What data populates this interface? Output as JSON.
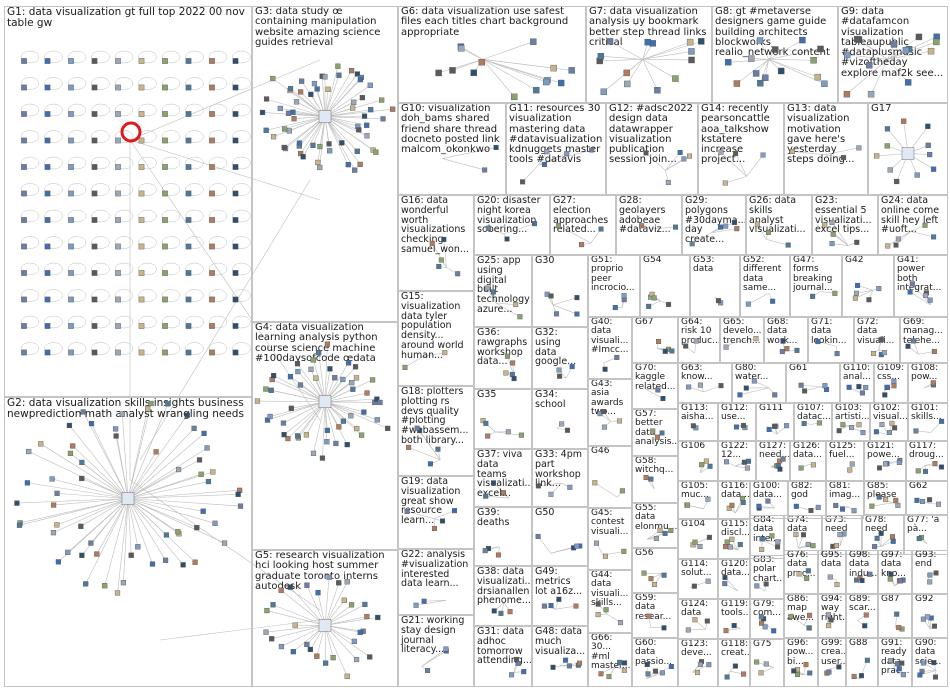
{
  "colors": {
    "border": "#c4c4c4",
    "edge": "#bdbdbd",
    "text": "#1a1a1a",
    "highlight": "#e0191b"
  },
  "groups": [
    {
      "id": "G1",
      "label": "G1: data visualization gt full top 2022 00 nov table gw"
    },
    {
      "id": "G2",
      "label": "G2: data visualization skills insights business newprediction math analyst wrangling needs"
    },
    {
      "id": "G3",
      "label": "G3: data study œ containing manipulation website amazing science guides retrieval"
    },
    {
      "id": "G4",
      "label": "G4: data visualization learning analysis python course science machine #100daysofcode œdata"
    },
    {
      "id": "G5",
      "label": "G5: research visualization hci looking host summer graduate toronto interns autodesk"
    },
    {
      "id": "G6",
      "label": "G6: data visualization use safest files each titles chart background appropriate"
    },
    {
      "id": "G7",
      "label": "G7: data visualization analysis џу bookmark better step thread links critical"
    },
    {
      "id": "G8",
      "label": "G8: gt #metaverse designers game guide building architects blockworks_ realio_network content"
    },
    {
      "id": "G9",
      "label": "G9: data #datafamcon visualization tableaupublic #dataplusmusic #vizoftheday explore maf2k see..."
    },
    {
      "id": "G10",
      "label": "G10: visualization doh_bams shared friend share thread docneto posted link malcom_okonkwo"
    },
    {
      "id": "G11",
      "label": "G11: resources 30 visualization mastering data #datavisualization kdnuggets master tools #datavis"
    },
    {
      "id": "G12",
      "label": "G12: #adsc2022 design data datawrapper visualization publication session join..."
    },
    {
      "id": "G14",
      "label": "G14: recently pearsoncattle aoa_talkshow kstatere increase project..."
    },
    {
      "id": "G13",
      "label": "G13: data visualization motivation gave here's yesterday steps doing..."
    },
    {
      "id": "G17",
      "label": "G17"
    },
    {
      "id": "G15",
      "label": "G15: visualization data tyler population density... around world human..."
    },
    {
      "id": "G16",
      "label": "G16: data wonderful worth visualizations checking samuel_won..."
    },
    {
      "id": "G18",
      "label": "G18: plotters plotting rs devs quality #plotting #webassem... both library..."
    },
    {
      "id": "G19",
      "label": "G19: data visualization great show resource learn..."
    },
    {
      "id": "G20",
      "label": "G20: disaster night korea visualization sobering..."
    },
    {
      "id": "G21",
      "label": "G21: working stay design journal literacy..."
    },
    {
      "id": "G22",
      "label": "G22: analysis #visualization interested data learn..."
    },
    {
      "id": "G23",
      "label": "G23: essential 5 visualizati... excel tips..."
    },
    {
      "id": "G24",
      "label": "G24: data online come skill hey left #uoft..."
    },
    {
      "id": "G25",
      "label": "G25: app using digital built technology azure..."
    },
    {
      "id": "G26",
      "label": "G26: data skills analyst visualizati..."
    },
    {
      "id": "G27",
      "label": "G27: election approaches related..."
    },
    {
      "id": "G28",
      "label": "G28: geolayers adobeae #dataviz..."
    },
    {
      "id": "G29",
      "label": "G29: polygons #30dayma... day create..."
    },
    {
      "id": "G30",
      "label": "G30"
    },
    {
      "id": "G31",
      "label": "G31: data adhoc tomorrow attending..."
    },
    {
      "id": "G32",
      "label": "G32: using data google..."
    },
    {
      "id": "G33",
      "label": "G33: 4pm part workshop link..."
    },
    {
      "id": "G34",
      "label": "G34: school"
    },
    {
      "id": "G35",
      "label": "G35"
    },
    {
      "id": "G36",
      "label": "G36: rawgraphs workshop data..."
    },
    {
      "id": "G37",
      "label": "G37: viva data teams visualizati... excel..."
    },
    {
      "id": "G38",
      "label": "G38: data visualizati... drsianallen phenome..."
    },
    {
      "id": "G39",
      "label": "G39: deaths"
    },
    {
      "id": "G40",
      "label": "G40: data visuali... #Imcc..."
    },
    {
      "id": "G41",
      "label": "G41: power both integrat..."
    },
    {
      "id": "G42",
      "label": "G42"
    },
    {
      "id": "G43",
      "label": "G43: asia awards two..."
    },
    {
      "id": "G44",
      "label": "G44: data visuali... skills..."
    },
    {
      "id": "G45",
      "label": "G45: contest visuali..."
    },
    {
      "id": "G46",
      "label": "G46"
    },
    {
      "id": "G47",
      "label": "G47: forms breaking journal..."
    },
    {
      "id": "G48",
      "label": "G48: data much visualiza..."
    },
    {
      "id": "G49",
      "label": "G49: metrics lot a16z..."
    },
    {
      "id": "G50",
      "label": "G50"
    },
    {
      "id": "G51",
      "label": "G51: proprio peer incrocio..."
    },
    {
      "id": "G52",
      "label": "G52: different data same..."
    },
    {
      "id": "G53",
      "label": "G53: data"
    },
    {
      "id": "G54",
      "label": "G54"
    },
    {
      "id": "G55",
      "label": "G55: data elonmu..."
    },
    {
      "id": "G56",
      "label": "G56"
    },
    {
      "id": "G57",
      "label": "G57: better data analysis..."
    },
    {
      "id": "G58",
      "label": "G58: witchq..."
    },
    {
      "id": "G59",
      "label": "G59: data resear..."
    },
    {
      "id": "G60",
      "label": "G60: data passio..."
    },
    {
      "id": "G61",
      "label": "G61"
    },
    {
      "id": "G62",
      "label": "G62"
    },
    {
      "id": "G63",
      "label": "G63: know..."
    },
    {
      "id": "G64",
      "label": "G64: risk 10 produc..."
    },
    {
      "id": "G65",
      "label": "G65: develo... trench..."
    },
    {
      "id": "G66",
      "label": "G66: 30... #ml master..."
    },
    {
      "id": "G67",
      "label": "G67"
    },
    {
      "id": "G68",
      "label": "G68: data work..."
    },
    {
      "id": "G69",
      "label": "G69: manag... telehe..."
    },
    {
      "id": "G70",
      "label": "G70: kaggle related..."
    },
    {
      "id": "G71",
      "label": "G71: data lookin..."
    },
    {
      "id": "G72",
      "label": "G72: data visuali..."
    },
    {
      "id": "G73",
      "label": "G73: need"
    },
    {
      "id": "G74",
      "label": "G74: data"
    },
    {
      "id": "G75",
      "label": "G75"
    },
    {
      "id": "G76",
      "label": "G76: data prac..."
    },
    {
      "id": "G77",
      "label": "G77: 'à pà..."
    },
    {
      "id": "G78",
      "label": "G78: need"
    },
    {
      "id": "G79",
      "label": "G79: com..."
    },
    {
      "id": "G80",
      "label": "G80: water..."
    },
    {
      "id": "G81",
      "label": "G81: imag..."
    },
    {
      "id": "G82",
      "label": "G82: god"
    },
    {
      "id": "G83",
      "label": "G83: polar chart..."
    },
    {
      "id": "G84",
      "label": "G84: data inter..."
    },
    {
      "id": "G85",
      "label": "G85: please"
    },
    {
      "id": "G86",
      "label": "G86: map awe..."
    },
    {
      "id": "G87",
      "label": "G87"
    },
    {
      "id": "G88",
      "label": "G88"
    },
    {
      "id": "G89",
      "label": "G89: scar..."
    },
    {
      "id": "G90",
      "label": "G90: data scie..."
    },
    {
      "id": "G91",
      "label": "G91: ready data prac..."
    },
    {
      "id": "G92",
      "label": "G92"
    },
    {
      "id": "G93",
      "label": "G93: end"
    },
    {
      "id": "G94",
      "label": "G94: way right..."
    },
    {
      "id": "G95",
      "label": "G95: data"
    },
    {
      "id": "G96",
      "label": "G96: pow... bi..."
    },
    {
      "id": "G97",
      "label": "G97: data kno..."
    },
    {
      "id": "G98",
      "label": "G98: data indu..."
    },
    {
      "id": "G99",
      "label": "G99: crea... user..."
    },
    {
      "id": "G100",
      "label": "G100: data..."
    },
    {
      "id": "G101",
      "label": "G101: skills..."
    },
    {
      "id": "G102",
      "label": "G102: visual..."
    },
    {
      "id": "G103",
      "label": "G103: artisti..."
    },
    {
      "id": "G104",
      "label": "G104"
    },
    {
      "id": "G105",
      "label": "G105: muc..."
    },
    {
      "id": "G106",
      "label": "G106"
    },
    {
      "id": "G107",
      "label": "G107: datac..."
    },
    {
      "id": "G108",
      "label": "G108: pow..."
    },
    {
      "id": "G109",
      "label": "G109: css..."
    },
    {
      "id": "G110",
      "label": "G110: anal..."
    },
    {
      "id": "G111",
      "label": "G111"
    },
    {
      "id": "G112",
      "label": "G112: use..."
    },
    {
      "id": "G113",
      "label": "G113: aisha..."
    },
    {
      "id": "G114",
      "label": "G114: solut..."
    },
    {
      "id": "G115",
      "label": "G115: discl..."
    },
    {
      "id": "G116",
      "label": "G116: data..."
    },
    {
      "id": "G117",
      "label": "G117: droug..."
    },
    {
      "id": "G118",
      "label": "G118: creat..."
    },
    {
      "id": "G119",
      "label": "G119: tools..."
    },
    {
      "id": "G120",
      "label": "G120: data..."
    },
    {
      "id": "G121",
      "label": "G121: powe..."
    },
    {
      "id": "G122",
      "label": "G122: 12..."
    },
    {
      "id": "G123",
      "label": "G123: deve..."
    },
    {
      "id": "G124",
      "label": "G124: data"
    },
    {
      "id": "G125",
      "label": "G125: fuel..."
    },
    {
      "id": "G126",
      "label": "G126: data..."
    },
    {
      "id": "G127",
      "label": "G127: need..."
    }
  ]
}
